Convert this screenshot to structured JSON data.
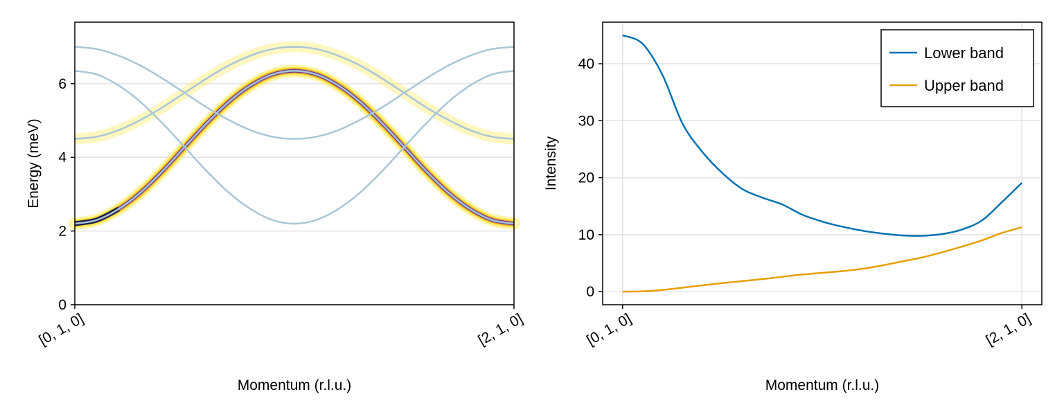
{
  "chart_data": [
    {
      "type": "line",
      "xlabel": "Momentum (r.l.u.)",
      "ylabel": "Energy (meV)",
      "xlim": [
        0,
        2
      ],
      "ylim": [
        0,
        7.67
      ],
      "grid": true,
      "xticks": [
        {
          "value": 0,
          "label": "[0, 1, 0]"
        },
        {
          "value": 2,
          "label": "[2, 1, 0]"
        }
      ],
      "yticks": [
        0,
        2,
        4,
        6
      ],
      "x": [
        0,
        0.1,
        0.2,
        0.3,
        0.4,
        0.5,
        0.6,
        0.7,
        0.8,
        0.9,
        1.0,
        1.1,
        1.2,
        1.3,
        1.4,
        1.5,
        1.6,
        1.7,
        1.8,
        1.9,
        2.0
      ],
      "series": [
        {
          "style": "intensity-band-strong",
          "values": [
            2.2,
            2.3,
            2.6,
            3.05,
            3.63,
            4.28,
            4.92,
            5.5,
            5.95,
            6.25,
            6.35,
            6.25,
            5.95,
            5.5,
            4.92,
            4.28,
            3.63,
            3.05,
            2.6,
            2.3,
            2.2
          ]
        },
        {
          "style": "intensity-band-weak",
          "values": [
            4.5,
            4.56,
            4.74,
            5.02,
            5.36,
            5.75,
            6.14,
            6.49,
            6.76,
            6.94,
            7.0,
            6.94,
            6.76,
            6.49,
            6.14,
            5.75,
            5.36,
            5.02,
            4.74,
            4.56,
            4.5
          ]
        },
        {
          "style": "dispersion",
          "values": [
            2.2,
            2.3,
            2.6,
            3.05,
            3.63,
            4.28,
            4.92,
            5.5,
            5.95,
            6.25,
            6.35,
            6.25,
            5.95,
            5.5,
            4.92,
            4.28,
            3.63,
            3.05,
            2.6,
            2.3,
            2.2
          ]
        },
        {
          "style": "dispersion",
          "values": [
            4.5,
            4.56,
            4.74,
            5.02,
            5.36,
            5.75,
            6.14,
            6.49,
            6.76,
            6.94,
            7.0,
            6.94,
            6.76,
            6.49,
            6.14,
            5.75,
            5.36,
            5.02,
            4.74,
            4.56,
            4.5
          ]
        },
        {
          "style": "dispersion",
          "values": [
            6.35,
            6.25,
            5.95,
            5.5,
            4.92,
            4.28,
            3.63,
            3.05,
            2.6,
            2.3,
            2.2,
            2.3,
            2.6,
            3.05,
            3.63,
            4.28,
            4.92,
            5.5,
            5.95,
            6.25,
            6.35
          ]
        },
        {
          "style": "dispersion",
          "values": [
            7.0,
            6.94,
            6.76,
            6.49,
            6.14,
            5.75,
            5.36,
            5.02,
            4.74,
            4.56,
            4.5,
            4.56,
            4.74,
            5.02,
            5.36,
            5.75,
            6.14,
            6.49,
            6.76,
            6.94,
            7.0
          ]
        }
      ],
      "colors": {
        "dispersion": "#a9c6d6",
        "band_outer": "#fbe84a",
        "band_mid": "#f0a830",
        "band_inner": "#6a3d8f",
        "band_core": "#1b1f4a"
      }
    },
    {
      "type": "line",
      "xlabel": "Momentum (r.l.u.)",
      "ylabel": "Intensity",
      "xlim": [
        -0.1,
        2.1
      ],
      "ylim": [
        -2.3,
        47.3
      ],
      "grid": true,
      "legend": "top-right",
      "xticks": [
        {
          "value": 0,
          "label": "[0, 1, 0]"
        },
        {
          "value": 2,
          "label": "[2, 1, 0]"
        }
      ],
      "yticks": [
        0,
        10,
        20,
        30,
        40
      ],
      "x": [
        0,
        0.1,
        0.2,
        0.3,
        0.4,
        0.5,
        0.6,
        0.7,
        0.8,
        0.9,
        1.0,
        1.1,
        1.2,
        1.3,
        1.4,
        1.5,
        1.6,
        1.7,
        1.8,
        1.9,
        2.0
      ],
      "series": [
        {
          "name": "Lower band",
          "color": "#0072b2",
          "values": [
            45,
            43.5,
            38,
            29.5,
            24.5,
            20.8,
            18,
            16.5,
            15.3,
            13.5,
            12.3,
            11.4,
            10.7,
            10.2,
            9.85,
            9.8,
            10.1,
            10.9,
            12.5,
            15.7,
            19.1
          ]
        },
        {
          "name": "Upper band",
          "color": "#e69f00",
          "values": [
            0,
            0.05,
            0.3,
            0.7,
            1.1,
            1.5,
            1.85,
            2.2,
            2.6,
            3.0,
            3.3,
            3.6,
            4.0,
            4.6,
            5.3,
            6.0,
            6.9,
            7.9,
            9.0,
            10.3,
            11.3
          ]
        }
      ]
    }
  ]
}
